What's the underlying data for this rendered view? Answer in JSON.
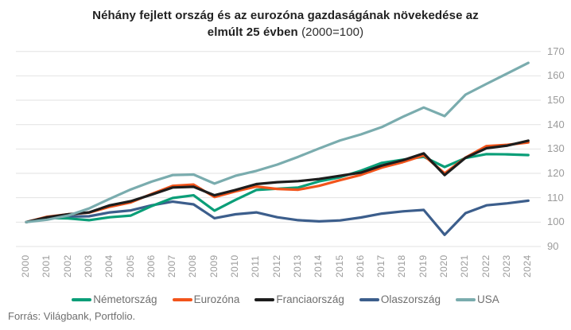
{
  "title": {
    "line1": "Néhány fejlett ország és az eurozóna gazdaságának növekedése az",
    "line2_bold": "elmúlt 25 évben",
    "line2_suffix": "(2000=100)"
  },
  "source": "Forrás: Világbank, Portfolio.",
  "colors": {
    "grid": "#e2e2e2",
    "axis_label": "#9b9b9b",
    "legend_label": "#6f6f6f",
    "background": "#ffffff"
  },
  "chart_data": {
    "type": "line",
    "title": "Néhány fejlett ország és az eurozóna gazdaságának növekedése az elmúlt 25 évben (2000=100)",
    "index_base": "2000=100",
    "grid": "horizontal-only",
    "legend_position": "bottom",
    "xlabel": "",
    "ylabel": "",
    "ylim": [
      90,
      170
    ],
    "yticks": [
      90,
      100,
      110,
      120,
      130,
      140,
      150,
      160,
      170
    ],
    "categories": [
      "2000",
      "2001",
      "2002",
      "2003",
      "2004",
      "2005",
      "2006",
      "2007",
      "2008",
      "2009",
      "2010",
      "2011",
      "2012",
      "2013",
      "2014",
      "2015",
      "2016",
      "2017",
      "2018",
      "2019",
      "2020",
      "2021",
      "2022",
      "2023",
      "2024"
    ],
    "series": [
      {
        "name": "Németország",
        "slug": "nemetorszag",
        "color": "#0a9e78",
        "values": [
          100,
          101.7,
          101.5,
          100.8,
          102.0,
          102.7,
          106.6,
          109.9,
          111.0,
          104.7,
          109.1,
          113.2,
          113.7,
          114.2,
          116.7,
          118.4,
          121.1,
          124.3,
          125.6,
          126.8,
          122.6,
          126.3,
          127.9,
          127.8,
          127.5
        ]
      },
      {
        "name": "Eurozóna",
        "slug": "eurozona",
        "color": "#f2541b",
        "values": [
          100,
          102.2,
          103.2,
          103.9,
          106.3,
          108.1,
          111.6,
          114.9,
          115.4,
          110.3,
          112.6,
          114.6,
          113.6,
          113.3,
          114.9,
          117.2,
          119.4,
          122.4,
          124.6,
          127.4,
          120.0,
          126.5,
          131.2,
          131.7,
          132.7
        ]
      },
      {
        "name": "Franciaország",
        "slug": "franciaorszag",
        "color": "#1d1d1d",
        "values": [
          100,
          102.0,
          103.2,
          104.0,
          106.9,
          108.6,
          111.3,
          114.2,
          114.5,
          111.0,
          113.2,
          115.6,
          116.4,
          116.8,
          117.7,
          119.0,
          120.3,
          123.2,
          125.4,
          128.2,
          119.3,
          126.4,
          130.3,
          131.4,
          133.4
        ]
      },
      {
        "name": "Olaszország",
        "slug": "olaszorszag",
        "color": "#3c5e8c",
        "values": [
          100,
          102.0,
          102.3,
          102.4,
          104.0,
          104.8,
          106.9,
          108.4,
          107.3,
          101.6,
          103.2,
          104.0,
          102.0,
          100.8,
          100.3,
          100.7,
          101.9,
          103.5,
          104.4,
          105.0,
          94.8,
          103.7,
          106.9,
          107.7,
          108.8
        ]
      },
      {
        "name": "USA",
        "slug": "usa",
        "color": "#7aacae",
        "values": [
          100,
          101.0,
          102.7,
          105.6,
          109.6,
          113.4,
          116.6,
          119.3,
          119.5,
          115.8,
          119.0,
          121.0,
          123.6,
          126.8,
          130.2,
          133.5,
          136.0,
          139.0,
          143.2,
          147.0,
          143.5,
          152.3,
          156.7,
          161.0,
          165.3
        ]
      }
    ],
    "draw_order": [
      "olaszorszag",
      "nemetorszag",
      "eurozona",
      "franciaorszag",
      "usa"
    ]
  }
}
